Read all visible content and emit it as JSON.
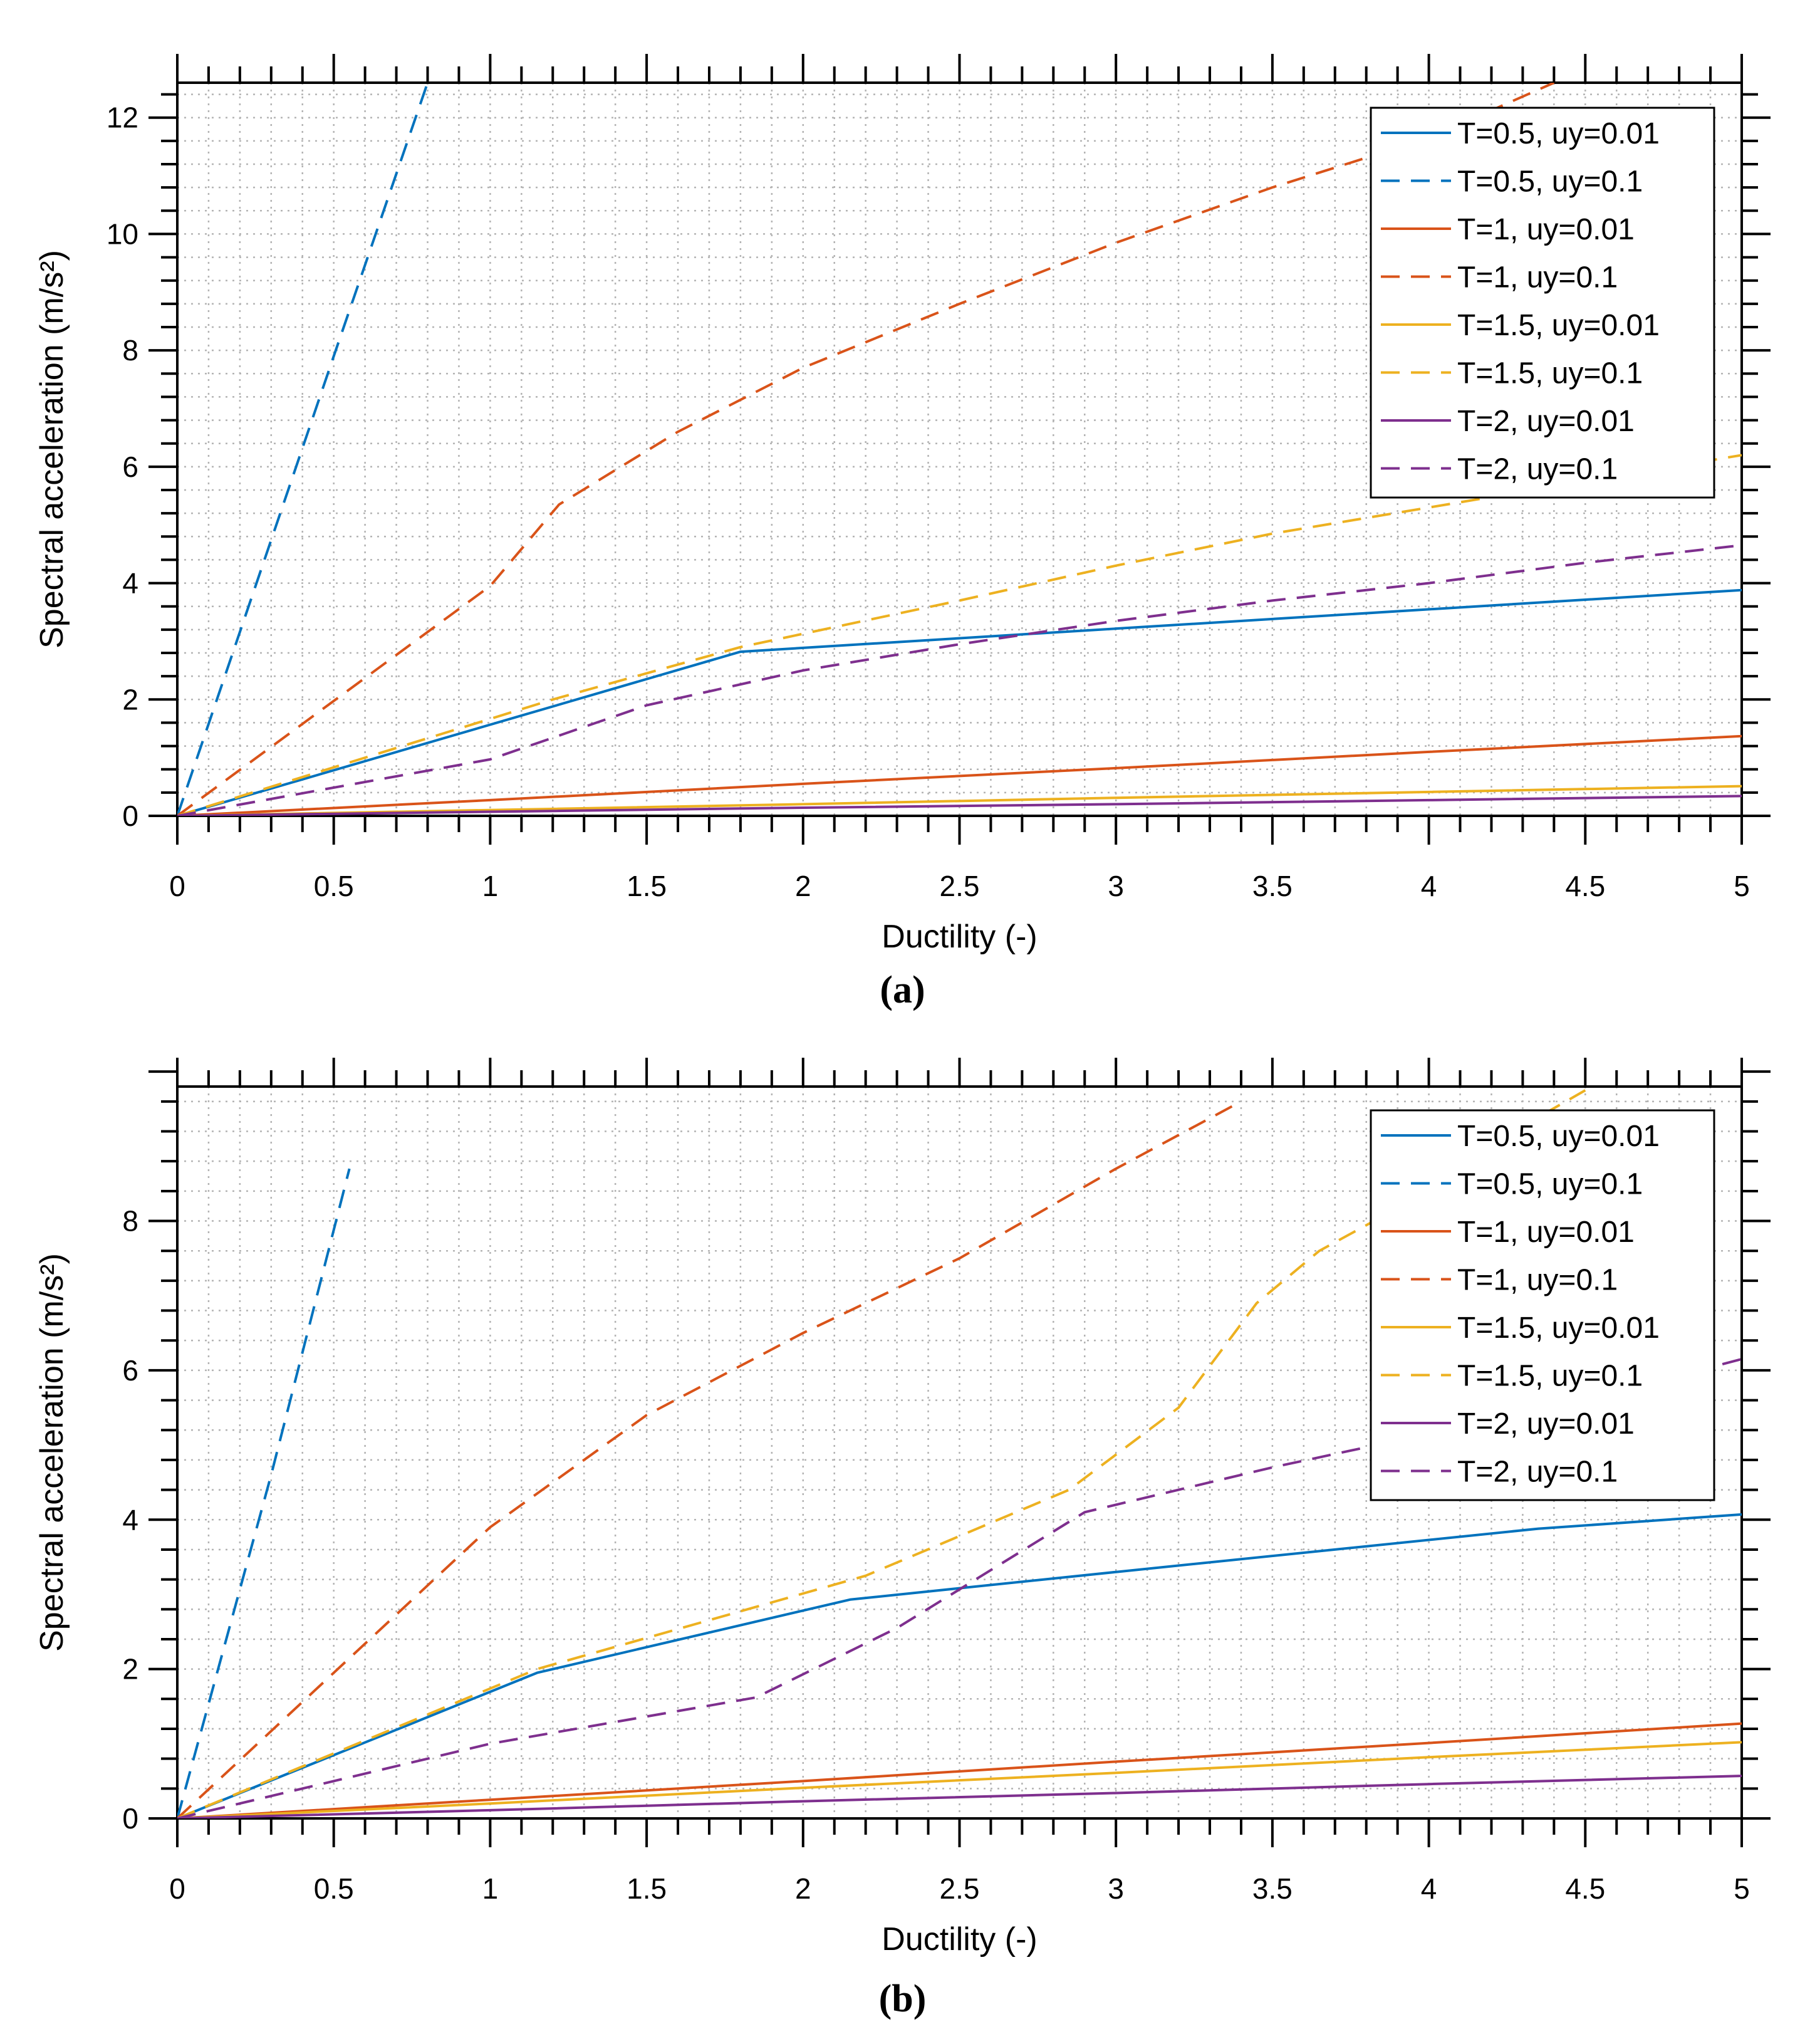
{
  "figure": {
    "captions": [
      "(a)",
      "(b)"
    ]
  },
  "colors": {
    "blue": "#0072BD",
    "orange": "#D95319",
    "yellow": "#EDB120",
    "purple": "#7E2F8E",
    "grid": "#b4b4b4",
    "axis": "#000000"
  },
  "chart_data": [
    {
      "type": "line",
      "panel": "a",
      "title": "",
      "xlabel": "Ductility (-)",
      "ylabel": "Spectral acceleration (m/s²)",
      "xlim": [
        0,
        5
      ],
      "ylim": [
        0,
        12.6
      ],
      "xticks": [
        0,
        0.5,
        1,
        1.5,
        2,
        2.5,
        3,
        3.5,
        4,
        4.5,
        5
      ],
      "xtick_labels": [
        "0",
        "0.5",
        "1",
        "1.5",
        "2",
        "2.5",
        "3",
        "3.5",
        "4",
        "4.5",
        "5"
      ],
      "yticks": [
        0,
        2,
        4,
        6,
        8,
        10,
        12
      ],
      "ytick_labels": [
        "0",
        "2",
        "4",
        "6",
        "8",
        "10",
        "12"
      ],
      "grid": true,
      "legend_position": "top-right",
      "series": [
        {
          "name": "T=0.5, uy=0.01",
          "color": "blue",
          "dash": false,
          "x": [
            0,
            1.8,
            5
          ],
          "y": [
            0,
            2.82,
            3.88
          ]
        },
        {
          "name": "T=0.5, uy=0.1",
          "color": "blue",
          "dash": true,
          "x": [
            0,
            0.5,
            0.8
          ],
          "y": [
            0,
            7.9,
            12.6
          ]
        },
        {
          "name": "T=1, uy=0.01",
          "color": "orange",
          "dash": false,
          "x": [
            0,
            1,
            2,
            3,
            4,
            5
          ],
          "y": [
            0,
            0.27,
            0.55,
            0.82,
            1.1,
            1.37
          ]
        },
        {
          "name": "T=1, uy=0.1",
          "color": "orange",
          "dash": true,
          "x": [
            0,
            1,
            1.22,
            1.6,
            2,
            2.5,
            3,
            3.5,
            4,
            4.4
          ],
          "y": [
            0,
            3.95,
            5.35,
            6.6,
            7.7,
            8.8,
            9.85,
            10.8,
            11.65,
            12.6
          ]
        },
        {
          "name": "T=1.5, uy=0.01",
          "color": "yellow",
          "dash": false,
          "x": [
            0,
            1,
            2,
            3,
            4,
            5
          ],
          "y": [
            0,
            0.1,
            0.2,
            0.31,
            0.41,
            0.51
          ]
        },
        {
          "name": "T=1.5, uy=0.1",
          "color": "yellow",
          "dash": true,
          "x": [
            0,
            1.2,
            1.8,
            2.5,
            3,
            3.5,
            4,
            4.5,
            5
          ],
          "y": [
            0,
            2.0,
            2.9,
            3.7,
            4.3,
            4.85,
            5.3,
            5.75,
            6.2
          ]
        },
        {
          "name": "T=2, uy=0.01",
          "color": "purple",
          "dash": false,
          "x": [
            0,
            1,
            2,
            3,
            4,
            5
          ],
          "y": [
            0,
            0.07,
            0.14,
            0.2,
            0.27,
            0.34
          ]
        },
        {
          "name": "T=2, uy=0.1",
          "color": "purple",
          "dash": true,
          "x": [
            0,
            1,
            1.5,
            2,
            2.5,
            3,
            3.5,
            4,
            4.5,
            5
          ],
          "y": [
            0,
            0.97,
            1.9,
            2.5,
            2.95,
            3.35,
            3.7,
            4.0,
            4.35,
            4.65
          ]
        }
      ]
    },
    {
      "type": "line",
      "panel": "b",
      "title": "",
      "xlabel": "Ductility (-)",
      "ylabel": "Spectral acceleration (m/s²)",
      "xlim": [
        0,
        5
      ],
      "ylim": [
        0,
        9.8
      ],
      "xticks": [
        0,
        0.5,
        1,
        1.5,
        2,
        2.5,
        3,
        3.5,
        4,
        4.5,
        5
      ],
      "xtick_labels": [
        "0",
        "0.5",
        "1",
        "1.5",
        "2",
        "2.5",
        "3",
        "3.5",
        "4",
        "4.5",
        "5"
      ],
      "yticks": [
        0,
        2,
        4,
        6,
        8
      ],
      "ytick_labels": [
        "0",
        "2",
        "4",
        "6",
        "8"
      ],
      "grid": true,
      "legend_position": "top-right",
      "series": [
        {
          "name": "T=0.5, uy=0.01",
          "color": "blue",
          "dash": false,
          "x": [
            0,
            1.15,
            2.15,
            3,
            4.35,
            5
          ],
          "y": [
            0,
            1.95,
            2.93,
            3.3,
            3.88,
            4.07
          ]
        },
        {
          "name": "T=0.5, uy=0.1",
          "color": "blue",
          "dash": true,
          "x": [
            0,
            0.3,
            0.55
          ],
          "y": [
            0,
            4.6,
            8.7
          ]
        },
        {
          "name": "T=1, uy=0.01",
          "color": "orange",
          "dash": false,
          "x": [
            0,
            1,
            2,
            3,
            4,
            5
          ],
          "y": [
            0,
            0.25,
            0.5,
            0.76,
            1.01,
            1.27
          ]
        },
        {
          "name": "T=1, uy=0.1",
          "color": "orange",
          "dash": true,
          "x": [
            0,
            1,
            1.5,
            2,
            2.5,
            3,
            3.4
          ],
          "y": [
            0,
            3.9,
            5.4,
            6.5,
            7.5,
            8.7,
            9.6
          ]
        },
        {
          "name": "T=1.5, uy=0.01",
          "color": "yellow",
          "dash": false,
          "x": [
            0,
            1,
            2,
            3,
            4,
            5
          ],
          "y": [
            0,
            0.2,
            0.41,
            0.61,
            0.82,
            1.02
          ]
        },
        {
          "name": "T=1.5, uy=0.1",
          "color": "yellow",
          "dash": true,
          "x": [
            0,
            1.15,
            2.2,
            2.85,
            3.2,
            3.45,
            3.65,
            4,
            4.25,
            4.5
          ],
          "y": [
            0,
            2.0,
            3.25,
            4.4,
            5.5,
            6.9,
            7.6,
            8.4,
            9.15,
            9.75
          ]
        },
        {
          "name": "T=2, uy=0.01",
          "color": "purple",
          "dash": false,
          "x": [
            0,
            1,
            2,
            3,
            4,
            5
          ],
          "y": [
            0,
            0.11,
            0.23,
            0.34,
            0.46,
            0.57
          ]
        },
        {
          "name": "T=2, uy=0.1",
          "color": "purple",
          "dash": true,
          "x": [
            0,
            1,
            1.85,
            2.3,
            2.9,
            3.5,
            4,
            4.5,
            5
          ],
          "y": [
            0,
            1.0,
            1.62,
            2.55,
            4.1,
            4.7,
            5.15,
            5.6,
            6.15
          ]
        }
      ]
    }
  ]
}
